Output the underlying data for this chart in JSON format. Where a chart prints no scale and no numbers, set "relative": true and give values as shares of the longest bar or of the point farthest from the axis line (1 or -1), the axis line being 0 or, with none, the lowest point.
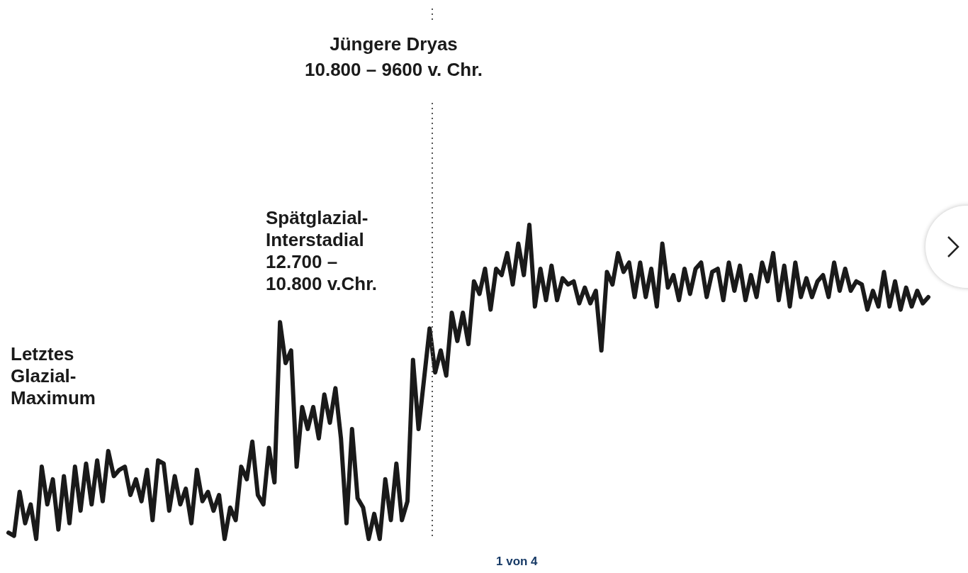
{
  "chart_data": {
    "type": "line",
    "relative": true,
    "legend": false,
    "categories": [
      null,
      null,
      null,
      null,
      null,
      null,
      null,
      null,
      null,
      null,
      null,
      null,
      null,
      null,
      null,
      null,
      null,
      null,
      null,
      null,
      null,
      null,
      null,
      null,
      null,
      null,
      null,
      null,
      null,
      null,
      null,
      null,
      null,
      null,
      null,
      null,
      null,
      null,
      null,
      null,
      null,
      null,
      null,
      null,
      null,
      null,
      null,
      null,
      null,
      null,
      null,
      null,
      null,
      null,
      null,
      null,
      null,
      null,
      null,
      null,
      null,
      null,
      null,
      null,
      null,
      null,
      null,
      null,
      null,
      null,
      null,
      null,
      null,
      null,
      null,
      null,
      null,
      null,
      null,
      null,
      null,
      null,
      null,
      null,
      null,
      null,
      null,
      null,
      null,
      null,
      null,
      null,
      null,
      null,
      null,
      null,
      null,
      null,
      null,
      null,
      null,
      null,
      null,
      null,
      null,
      null,
      null,
      null,
      null,
      null,
      null,
      null,
      null,
      null,
      null,
      null,
      null,
      null,
      null,
      null,
      null,
      null,
      null,
      null,
      null,
      null,
      null,
      null,
      null,
      null,
      null,
      null,
      null,
      null,
      null,
      null,
      null,
      null,
      null,
      null,
      null,
      null,
      null,
      null,
      null,
      null,
      null,
      null,
      null,
      null,
      null,
      null,
      null,
      null,
      null,
      null,
      null,
      null,
      null,
      null,
      null,
      null,
      null,
      null,
      null,
      null,
      null
    ],
    "series": [
      {
        "color": "#1a1a1a",
        "values": [
          0.02,
          0.01,
          0.15,
          0.05,
          0.11,
          0,
          0.23,
          0.11,
          0.19,
          0.03,
          0.2,
          0.05,
          0.23,
          0.09,
          0.24,
          0.11,
          0.25,
          0.12,
          0.28,
          0.2,
          0.22,
          0.23,
          0.14,
          0.19,
          0.12,
          0.22,
          0.06,
          0.25,
          0.24,
          0.09,
          0.2,
          0.11,
          0.16,
          0.05,
          0.22,
          0.12,
          0.15,
          0.09,
          0.14,
          0,
          0.1,
          0.06,
          0.23,
          0.19,
          0.31,
          0.14,
          0.11,
          0.29,
          0.18,
          0.69,
          0.56,
          0.6,
          0.23,
          0.42,
          0.35,
          0.42,
          0.32,
          0.46,
          0.37,
          0.48,
          0.32,
          0.05,
          0.35,
          0.13,
          0.1,
          0,
          0.08,
          0,
          0.19,
          0.06,
          0.24,
          0.06,
          0.12,
          0.57,
          0.35,
          0.51,
          0.67,
          0.53,
          0.6,
          0.52,
          0.72,
          0.63,
          0.72,
          0.62,
          0.82,
          0.78,
          0.86,
          0.73,
          0.86,
          0.84,
          0.91,
          0.81,
          0.94,
          0.84,
          1,
          0.74,
          0.86,
          0.76,
          0.87,
          0.76,
          0.83,
          0.81,
          0.82,
          0.75,
          0.8,
          0.75,
          0.79,
          0.6,
          0.85,
          0.81,
          0.91,
          0.85,
          0.88,
          0.77,
          0.88,
          0.77,
          0.86,
          0.74,
          0.94,
          0.8,
          0.84,
          0.76,
          0.86,
          0.78,
          0.86,
          0.88,
          0.77,
          0.85,
          0.86,
          0.76,
          0.88,
          0.79,
          0.87,
          0.76,
          0.84,
          0.77,
          0.88,
          0.82,
          0.91,
          0.76,
          0.87,
          0.74,
          0.88,
          0.77,
          0.83,
          0.77,
          0.82,
          0.84,
          0.77,
          0.88,
          0.79,
          0.86,
          0.79,
          0.82,
          0.81,
          0.73,
          0.79,
          0.74,
          0.85,
          0.74,
          0.82,
          0.73,
          0.8,
          0.74,
          0.79,
          0.75,
          0.77
        ]
      }
    ],
    "annotations": [
      "Jüngere Dryas\n10.800 – 9600 v. Chr.",
      "Letztes\nGlazial-\nMaximum",
      "Spätglazial-\nInterstadial\n12.700 –\n10.800 v.Chr.",
      "1 von 4"
    ]
  }
}
